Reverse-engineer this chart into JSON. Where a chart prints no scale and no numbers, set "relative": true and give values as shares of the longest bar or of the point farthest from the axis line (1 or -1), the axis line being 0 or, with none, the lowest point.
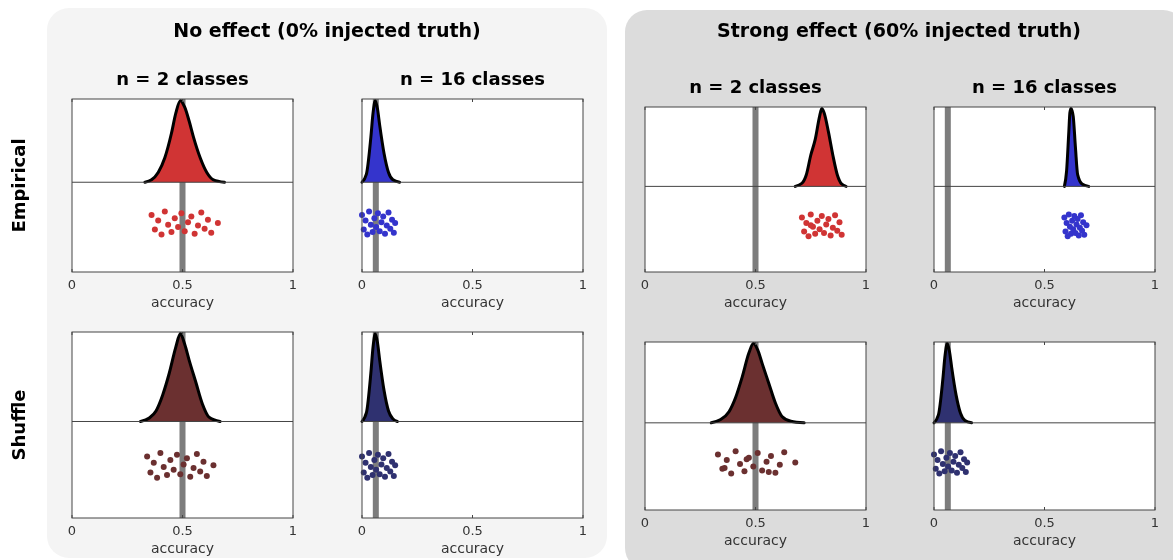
{
  "chart_data": [
    {
      "type": "area",
      "title": "No effect (0% injected truth)",
      "subtitle": "n = 2 classes",
      "ylabel": "Empirical",
      "xlabel": "accuracy",
      "xlim": [
        0,
        1
      ],
      "xticks": [
        0,
        0.5,
        1
      ],
      "relative": true,
      "tick_labels": "x",
      "ref_lines": [
        {
          "axis": "x",
          "value": 0.5,
          "color": "#666666"
        }
      ],
      "series": [
        {
          "type": "area",
          "color": "#d03434",
          "x": [
            0.33,
            0.36,
            0.39,
            0.42,
            0.45,
            0.47,
            0.49,
            0.51,
            0.53,
            0.55,
            0.58,
            0.61,
            0.64,
            0.69
          ],
          "values": [
            0,
            0.03,
            0.12,
            0.3,
            0.6,
            0.85,
            1,
            0.92,
            0.75,
            0.55,
            0.3,
            0.12,
            0.03,
            0
          ]
        },
        {
          "type": "scatter",
          "marker": "circle",
          "color": "#d03434",
          "x": [
            0.36,
            0.375,
            0.39,
            0.405,
            0.42,
            0.435,
            0.45,
            0.465,
            0.48,
            0.495,
            0.51,
            0.525,
            0.54,
            0.555,
            0.57,
            0.585,
            0.6,
            0.615,
            0.63,
            0.66
          ],
          "values": [
            -0.4,
            -0.58,
            -0.47,
            -0.64,
            -0.36,
            -0.52,
            -0.61,
            -0.44,
            -0.55,
            -0.38,
            -0.6,
            -0.49,
            -0.42,
            -0.63,
            -0.53,
            -0.37,
            -0.57,
            -0.46,
            -0.62,
            -0.5
          ]
        }
      ]
    },
    {
      "type": "area",
      "subtitle": "n = 16 classes",
      "xlabel": "accuracy",
      "xlim": [
        0,
        1
      ],
      "xticks": [
        0,
        0.5,
        1
      ],
      "relative": true,
      "tick_labels": "x",
      "ref_lines": [
        {
          "axis": "x",
          "value": 0.0625,
          "color": "#666666"
        }
      ],
      "series": [
        {
          "type": "area",
          "color": "#3434cc",
          "x": [
            0,
            0.02,
            0.04,
            0.05,
            0.06,
            0.07,
            0.08,
            0.1,
            0.12,
            0.14,
            0.17
          ],
          "values": [
            0,
            0.1,
            0.55,
            0.85,
            1,
            0.9,
            0.7,
            0.35,
            0.12,
            0.03,
            0
          ]
        },
        {
          "type": "scatter",
          "marker": "circle",
          "color": "#3434cc",
          "x": [
            0,
            0.008,
            0.016,
            0.024,
            0.032,
            0.04,
            0.048,
            0.056,
            0.064,
            0.072,
            0.08,
            0.088,
            0.096,
            0.104,
            0.112,
            0.12,
            0.128,
            0.136,
            0.144,
            0.15
          ],
          "values": [
            -0.4,
            -0.58,
            -0.47,
            -0.64,
            -0.36,
            -0.52,
            -0.61,
            -0.44,
            -0.55,
            -0.38,
            -0.6,
            -0.49,
            -0.42,
            -0.63,
            -0.53,
            -0.37,
            -0.57,
            -0.46,
            -0.62,
            -0.5
          ]
        }
      ]
    },
    {
      "type": "area",
      "title": "Strong effect (60% injected truth)",
      "subtitle": "n = 2 classes",
      "xlabel": "accuracy",
      "xlim": [
        0,
        1
      ],
      "xticks": [
        0,
        0.5,
        1
      ],
      "relative": true,
      "tick_labels": "x",
      "ref_lines": [
        {
          "axis": "x",
          "value": 0.5,
          "color": "#666666"
        }
      ],
      "series": [
        {
          "type": "area",
          "color": "#d03434",
          "x": [
            0.68,
            0.71,
            0.73,
            0.75,
            0.77,
            0.79,
            0.8,
            0.81,
            0.83,
            0.85,
            0.87,
            0.89,
            0.91
          ],
          "values": [
            0,
            0.04,
            0.15,
            0.4,
            0.6,
            0.9,
            1,
            0.95,
            0.7,
            0.4,
            0.15,
            0.03,
            0
          ]
        },
        {
          "type": "scatter",
          "marker": "circle",
          "color": "#d03434",
          "x": [
            0.71,
            0.72,
            0.73,
            0.74,
            0.75,
            0.76,
            0.77,
            0.78,
            0.79,
            0.8,
            0.81,
            0.82,
            0.83,
            0.84,
            0.85,
            0.86,
            0.87,
            0.88,
            0.89,
            0.75
          ],
          "values": [
            -0.4,
            -0.58,
            -0.47,
            -0.64,
            -0.36,
            -0.52,
            -0.61,
            -0.44,
            -0.55,
            -0.38,
            -0.6,
            -0.49,
            -0.42,
            -0.63,
            -0.53,
            -0.37,
            -0.57,
            -0.46,
            -0.62,
            -0.5
          ]
        }
      ]
    },
    {
      "type": "area",
      "subtitle": "n = 16 classes",
      "xlabel": "accuracy",
      "xlim": [
        0,
        1
      ],
      "xticks": [
        0,
        0.5,
        1
      ],
      "relative": true,
      "tick_labels": "x",
      "ref_lines": [
        {
          "axis": "x",
          "value": 0.0625,
          "color": "#666666"
        }
      ],
      "series": [
        {
          "type": "area",
          "color": "#3434cc",
          "x": [
            0.59,
            0.6,
            0.61,
            0.615,
            0.62,
            0.625,
            0.63,
            0.64,
            0.65,
            0.67,
            0.7
          ],
          "values": [
            0,
            0.2,
            0.7,
            0.95,
            1,
            0.97,
            0.9,
            0.5,
            0.15,
            0.03,
            0
          ]
        },
        {
          "type": "scatter",
          "marker": "circle",
          "color": "#3434cc",
          "x": [
            0.59,
            0.595,
            0.6,
            0.605,
            0.61,
            0.615,
            0.62,
            0.625,
            0.63,
            0.635,
            0.64,
            0.645,
            0.65,
            0.655,
            0.66,
            0.665,
            0.67,
            0.675,
            0.68,
            0.69
          ],
          "values": [
            -0.4,
            -0.58,
            -0.47,
            -0.64,
            -0.36,
            -0.52,
            -0.61,
            -0.44,
            -0.55,
            -0.38,
            -0.6,
            -0.49,
            -0.42,
            -0.63,
            -0.53,
            -0.37,
            -0.57,
            -0.46,
            -0.62,
            -0.5
          ]
        }
      ]
    },
    {
      "type": "area",
      "ylabel": "Shuffle",
      "xlabel": "accuracy",
      "xlim": [
        0,
        1
      ],
      "xticks": [
        0,
        0.5,
        1
      ],
      "relative": true,
      "tick_labels": "x",
      "ref_lines": [
        {
          "axis": "x",
          "value": 0.5,
          "color": "#666666"
        }
      ],
      "series": [
        {
          "type": "area",
          "color": "#6b3030",
          "x": [
            0.31,
            0.35,
            0.38,
            0.41,
            0.44,
            0.47,
            0.49,
            0.51,
            0.53,
            0.56,
            0.59,
            0.62,
            0.67
          ],
          "values": [
            0,
            0.04,
            0.12,
            0.3,
            0.55,
            0.85,
            1,
            0.88,
            0.7,
            0.45,
            0.2,
            0.05,
            0
          ]
        },
        {
          "type": "scatter",
          "marker": "circle",
          "color": "#6b3030",
          "x": [
            0.34,
            0.355,
            0.37,
            0.385,
            0.4,
            0.415,
            0.43,
            0.445,
            0.46,
            0.475,
            0.49,
            0.505,
            0.52,
            0.535,
            0.55,
            0.565,
            0.58,
            0.595,
            0.61,
            0.64
          ],
          "values": [
            -0.4,
            -0.58,
            -0.47,
            -0.64,
            -0.36,
            -0.52,
            -0.61,
            -0.44,
            -0.55,
            -0.38,
            -0.6,
            -0.49,
            -0.42,
            -0.63,
            -0.53,
            -0.37,
            -0.57,
            -0.46,
            -0.62,
            -0.5
          ]
        }
      ]
    },
    {
      "type": "area",
      "xlabel": "accuracy",
      "xlim": [
        0,
        1
      ],
      "xticks": [
        0,
        0.5,
        1
      ],
      "relative": true,
      "tick_labels": "x",
      "ref_lines": [
        {
          "axis": "x",
          "value": 0.0625,
          "color": "#666666"
        }
      ],
      "series": [
        {
          "type": "area",
          "color": "#2f3170",
          "x": [
            0,
            0.02,
            0.04,
            0.05,
            0.06,
            0.07,
            0.08,
            0.1,
            0.12,
            0.14,
            0.16
          ],
          "values": [
            0,
            0.1,
            0.55,
            0.85,
            1,
            0.9,
            0.7,
            0.35,
            0.12,
            0.03,
            0
          ]
        },
        {
          "type": "scatter",
          "marker": "circle",
          "color": "#2f3170",
          "x": [
            0,
            0.008,
            0.016,
            0.024,
            0.032,
            0.04,
            0.048,
            0.056,
            0.064,
            0.072,
            0.08,
            0.088,
            0.096,
            0.104,
            0.112,
            0.12,
            0.128,
            0.136,
            0.144,
            0.15
          ],
          "values": [
            -0.4,
            -0.58,
            -0.47,
            -0.64,
            -0.36,
            -0.52,
            -0.61,
            -0.44,
            -0.55,
            -0.38,
            -0.6,
            -0.49,
            -0.42,
            -0.63,
            -0.53,
            -0.37,
            -0.57,
            -0.46,
            -0.62,
            -0.5
          ]
        }
      ]
    },
    {
      "type": "area",
      "xlabel": "accuracy",
      "xlim": [
        0,
        1
      ],
      "xticks": [
        0,
        0.5,
        1
      ],
      "relative": true,
      "tick_labels": "x",
      "ref_lines": [
        {
          "axis": "x",
          "value": 0.5,
          "color": "#666666"
        }
      ],
      "series": [
        {
          "type": "area",
          "color": "#6b3030",
          "x": [
            0.3,
            0.34,
            0.38,
            0.41,
            0.44,
            0.47,
            0.49,
            0.51,
            0.53,
            0.56,
            0.59,
            0.62,
            0.66,
            0.72
          ],
          "values": [
            0,
            0.04,
            0.14,
            0.32,
            0.58,
            0.88,
            1,
            0.92,
            0.75,
            0.5,
            0.25,
            0.08,
            0.02,
            0
          ]
        },
        {
          "type": "scatter",
          "marker": "circle",
          "color": "#6b3030",
          "x": [
            0.33,
            0.35,
            0.37,
            0.39,
            0.41,
            0.43,
            0.45,
            0.47,
            0.49,
            0.51,
            0.53,
            0.55,
            0.57,
            0.59,
            0.61,
            0.63,
            0.36,
            0.46,
            0.56,
            0.68
          ],
          "values": [
            -0.4,
            -0.58,
            -0.47,
            -0.64,
            -0.36,
            -0.52,
            -0.61,
            -0.44,
            -0.55,
            -0.38,
            -0.6,
            -0.49,
            -0.42,
            -0.63,
            -0.53,
            -0.37,
            -0.57,
            -0.46,
            -0.62,
            -0.5
          ]
        }
      ]
    },
    {
      "type": "area",
      "xlabel": "accuracy",
      "xlim": [
        0,
        1
      ],
      "xticks": [
        0,
        0.5,
        1
      ],
      "relative": true,
      "tick_labels": "x",
      "ref_lines": [
        {
          "axis": "x",
          "value": 0.0625,
          "color": "#666666"
        }
      ],
      "series": [
        {
          "type": "area",
          "color": "#2f3170",
          "x": [
            0,
            0.02,
            0.04,
            0.05,
            0.06,
            0.07,
            0.08,
            0.1,
            0.12,
            0.14,
            0.17
          ],
          "values": [
            0,
            0.1,
            0.55,
            0.85,
            1,
            0.9,
            0.7,
            0.35,
            0.12,
            0.03,
            0
          ]
        },
        {
          "type": "scatter",
          "marker": "circle",
          "color": "#2f3170",
          "x": [
            0,
            0.008,
            0.016,
            0.024,
            0.032,
            0.04,
            0.048,
            0.056,
            0.064,
            0.072,
            0.08,
            0.088,
            0.096,
            0.104,
            0.112,
            0.12,
            0.128,
            0.136,
            0.144,
            0.15
          ],
          "values": [
            -0.4,
            -0.58,
            -0.47,
            -0.64,
            -0.36,
            -0.52,
            -0.61,
            -0.44,
            -0.55,
            -0.38,
            -0.6,
            -0.49,
            -0.42,
            -0.63,
            -0.53,
            -0.37,
            -0.57,
            -0.46,
            -0.62,
            -0.5
          ]
        }
      ]
    }
  ]
}
